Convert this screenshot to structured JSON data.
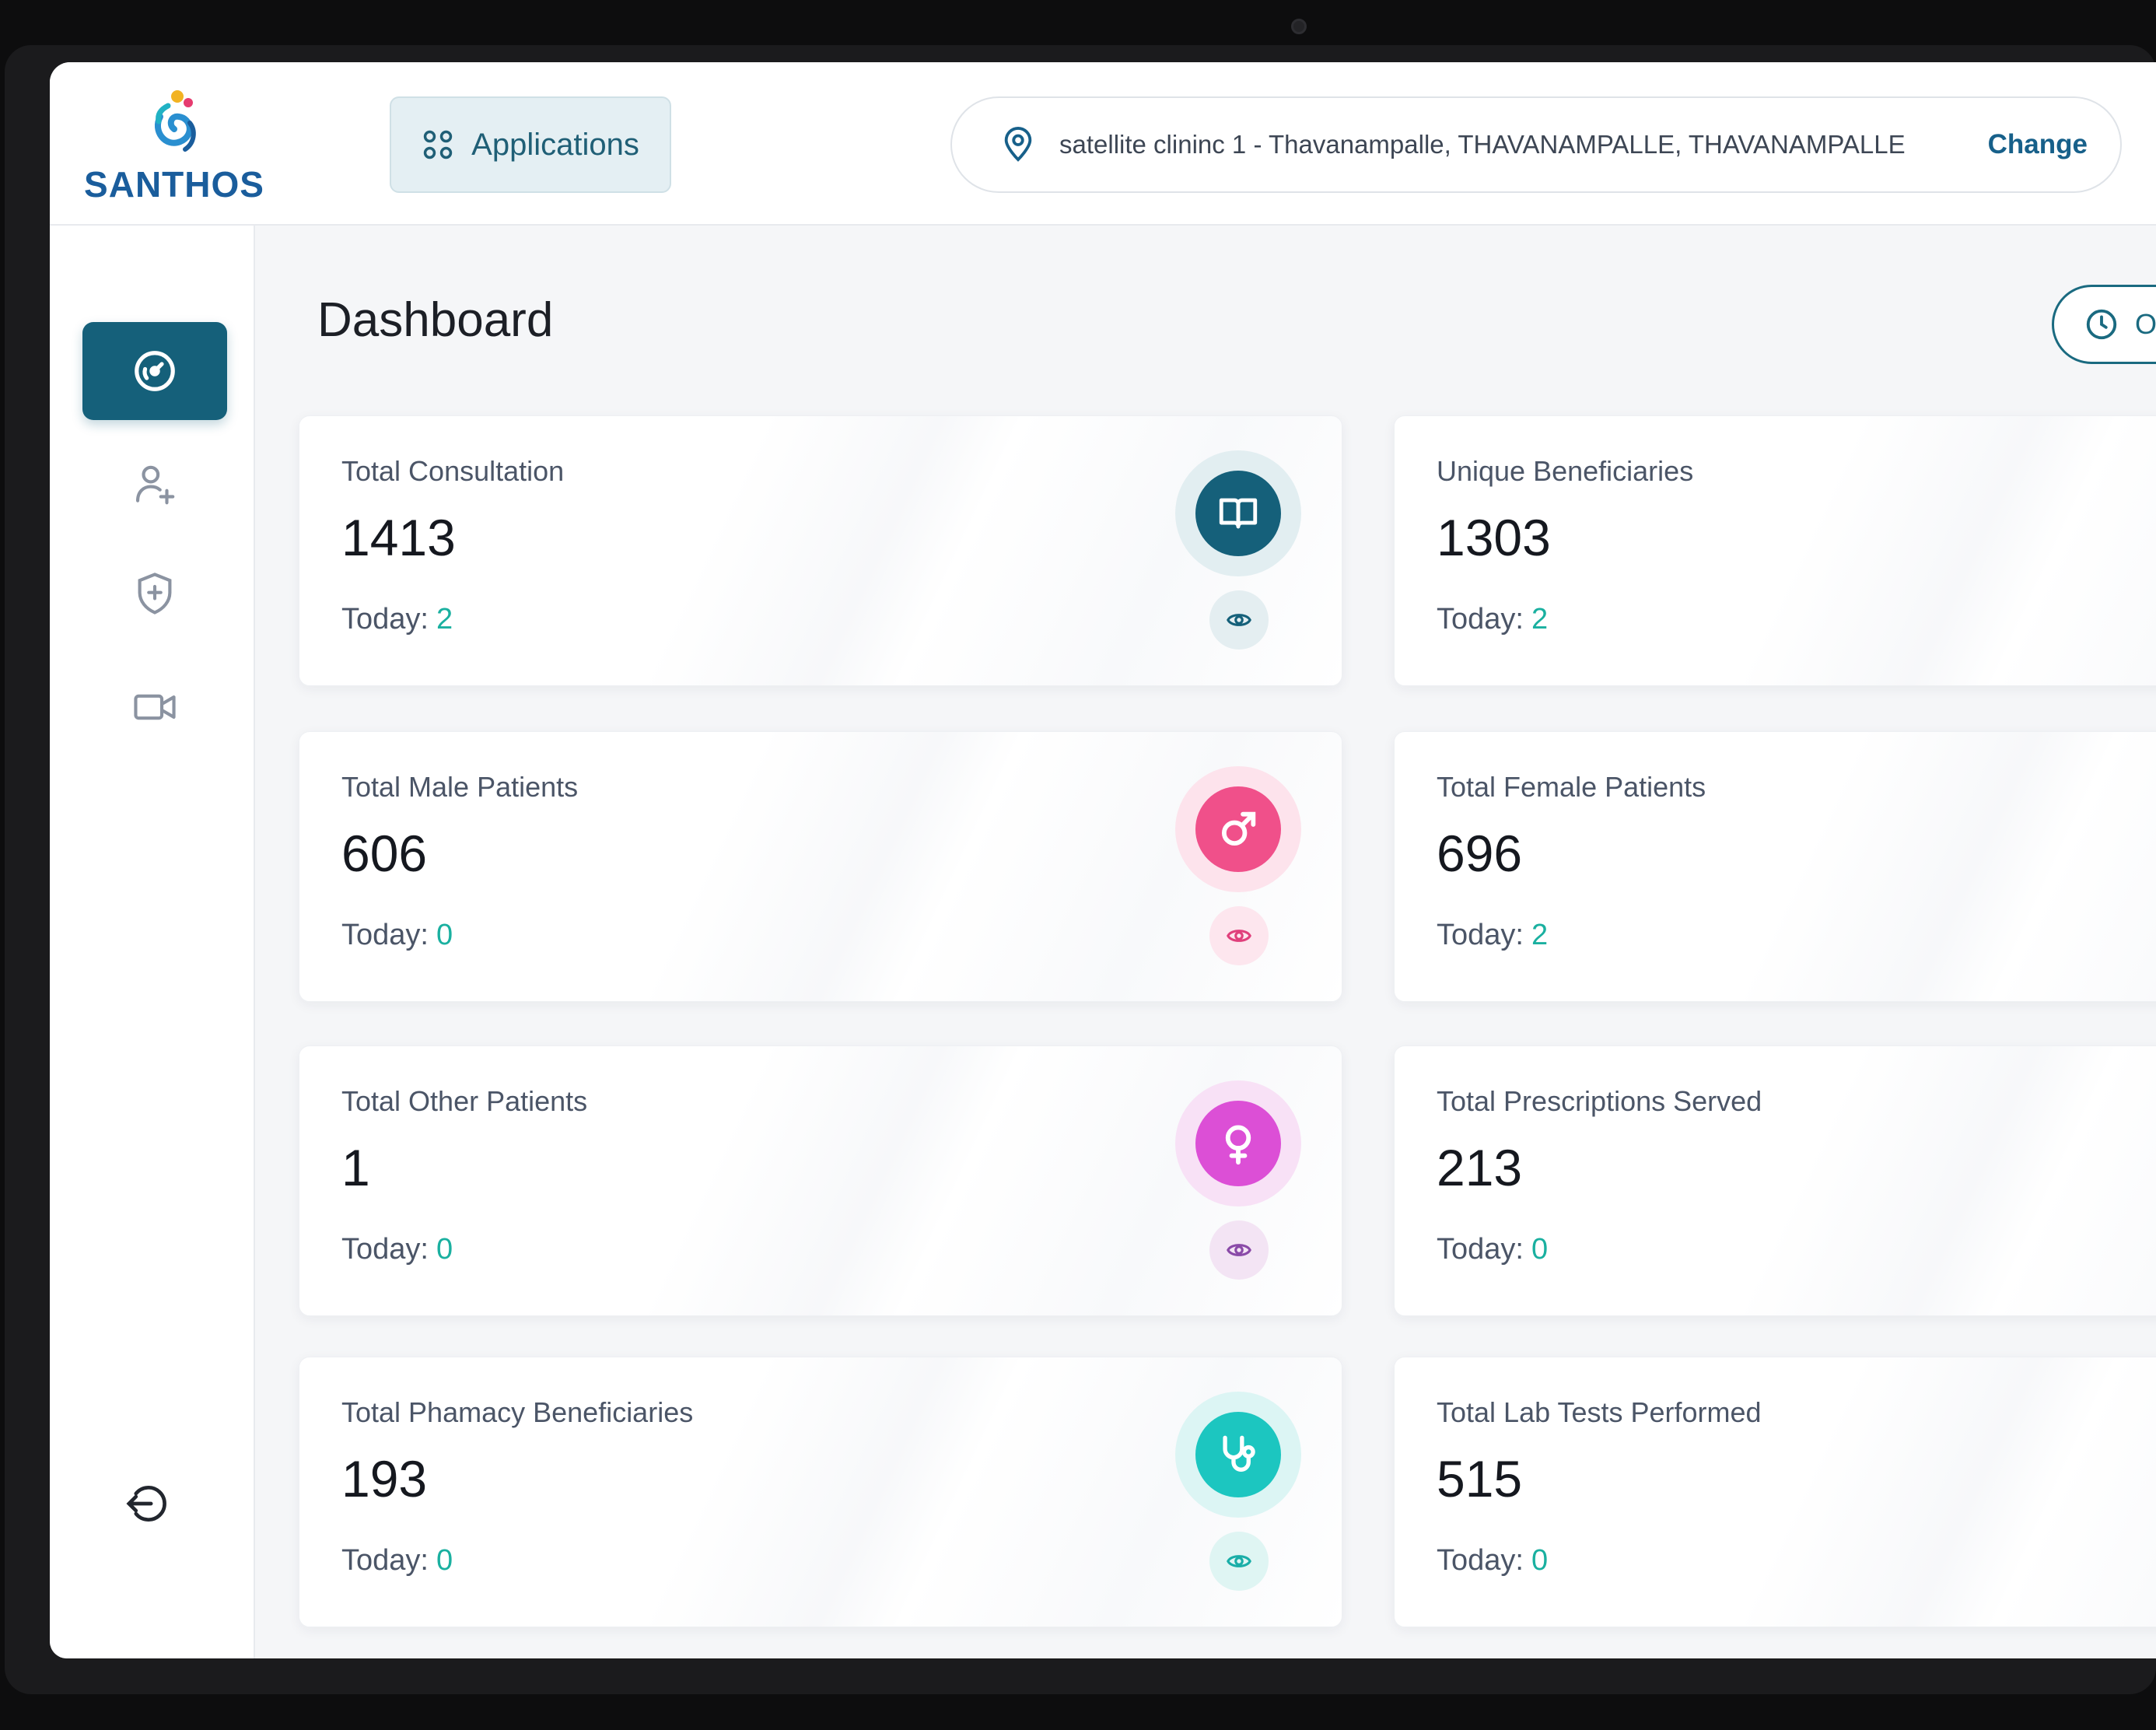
{
  "brand": {
    "name": "SANTHOS"
  },
  "header": {
    "applications_label": "Applications",
    "location_text": "satellite clininc 1 - Thavanampalle, THAVANAMPALLE, THAVANAMPALLE",
    "change_label": "Change"
  },
  "sidebar": {
    "items": [
      {
        "icon": "dashboard-gauge-icon",
        "active": true
      },
      {
        "icon": "add-user-icon",
        "active": false
      },
      {
        "icon": "shield-plus-icon",
        "active": false
      },
      {
        "icon": "video-camera-icon",
        "active": false
      }
    ],
    "logout_icon": "logout-icon"
  },
  "main": {
    "title": "Dashboard",
    "time_pill_label": "Ol"
  },
  "cards": [
    {
      "label": "Total Consultation",
      "value": "1413",
      "today_label": "Today:",
      "today_value": "2",
      "icon": "book-icon",
      "badge_color": "#15607a"
    },
    {
      "label": "Unique Beneficiaries",
      "value": "1303",
      "today_label": "Today:",
      "today_value": "2"
    },
    {
      "label": "Total Male Patients",
      "value": "606",
      "today_label": "Today:",
      "today_value": "0",
      "icon": "male-symbol-icon",
      "badge_color": "#f0508a"
    },
    {
      "label": "Total Female Patients",
      "value": "696",
      "today_label": "Today:",
      "today_value": "2"
    },
    {
      "label": "Total Other Patients",
      "value": "1",
      "today_label": "Today:",
      "today_value": "0",
      "icon": "female-symbol-icon",
      "badge_color": "#dc4fd6"
    },
    {
      "label": "Total Prescriptions Served",
      "value": "213",
      "today_label": "Today:",
      "today_value": "0"
    },
    {
      "label": "Total Phamacy Beneficiaries",
      "value": "193",
      "today_label": "Today:",
      "today_value": "0",
      "icon": "stethoscope-icon",
      "badge_color": "#1cc6c0"
    },
    {
      "label": "Total Lab Tests Performed",
      "value": "515",
      "today_label": "Today:",
      "today_value": "0"
    }
  ],
  "colors": {
    "primary": "#15607a",
    "accent_teal": "#1ab0a0",
    "male_pink": "#f0508a",
    "other_magenta": "#dc4fd6",
    "pharmacy_cyan": "#1cc6c0"
  }
}
